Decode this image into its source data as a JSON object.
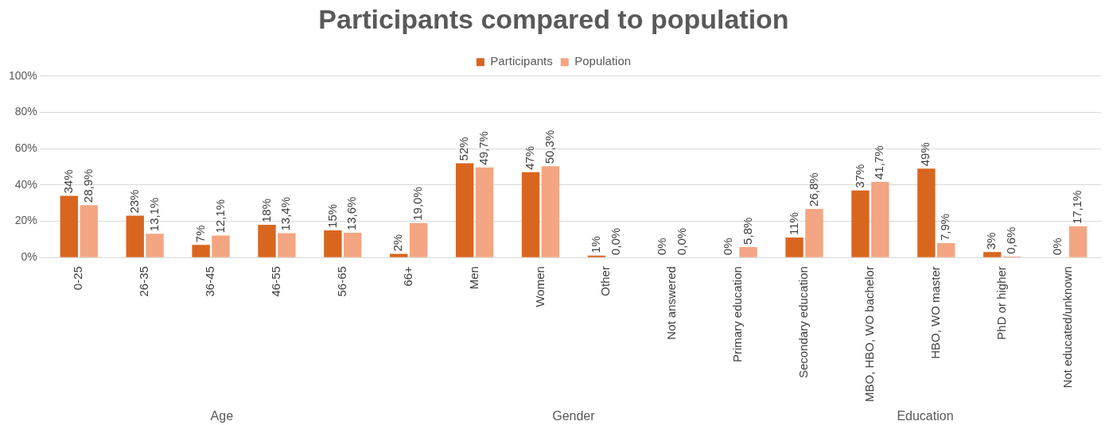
{
  "chart_data": {
    "type": "bar",
    "title": "Participants compared to population",
    "categories": [
      "0-25",
      "26-35",
      "36-45",
      "46-55",
      "56-65",
      "66+",
      "Men",
      "Women",
      "Other",
      "Not answered",
      "Primary education",
      "Secondary education",
      "MBO, HBO, WO bachelor",
      "HBO, WO master",
      "PhD or higher",
      "Not educated/unknown"
    ],
    "series": [
      {
        "name": "Participants",
        "color": "#d9661f",
        "values": [
          34,
          23,
          7,
          18,
          15,
          2,
          52,
          47,
          1,
          0,
          0,
          11,
          37,
          49,
          3,
          0
        ],
        "value_labels": [
          "34%",
          "23%",
          "7%",
          "18%",
          "15%",
          "2%",
          "52%",
          "47%",
          "1%",
          "0%",
          "0%",
          "11%",
          "37%",
          "49%",
          "3%",
          "0%"
        ]
      },
      {
        "name": "Population",
        "color": "#f4a582",
        "values": [
          28.9,
          13.1,
          12.1,
          13.4,
          13.6,
          19.0,
          49.7,
          50.3,
          0,
          0,
          5.8,
          26.8,
          41.7,
          7.9,
          0.6,
          17.1
        ],
        "value_labels": [
          "28,9%",
          "13,1%",
          "12,1%",
          "13,4%",
          "13,6%",
          "19,0%",
          "49,7%",
          "50,3%",
          "0,0%",
          "0,0%",
          "5,8%",
          "26,8%",
          "41,7%",
          "7,9%",
          "0,6%",
          "17,1%"
        ]
      }
    ],
    "ylim": [
      0,
      100
    ],
    "yticks": [
      {
        "value": 0,
        "label": "0%"
      },
      {
        "value": 20,
        "label": "20%"
      },
      {
        "value": 40,
        "label": "40%"
      },
      {
        "value": 60,
        "label": "60%"
      },
      {
        "value": 80,
        "label": "80%"
      },
      {
        "value": 100,
        "label": "100%"
      }
    ],
    "grid": "y",
    "legend": "top",
    "annotations": [
      "Age",
      "Gender",
      "Education"
    ]
  }
}
